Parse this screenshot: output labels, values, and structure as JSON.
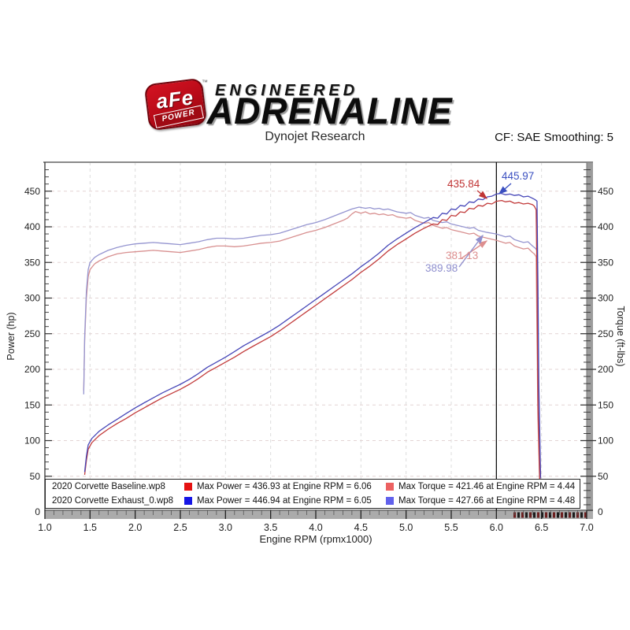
{
  "header": {
    "badge_main": "aFe",
    "badge_sub": "POWER",
    "badge_tm": "™",
    "brand_line1": "ENGINEERED",
    "brand_line2": "ADRENALINE",
    "subtitle": "Dynojet Research",
    "smoothing": "CF: SAE Smoothing: 5"
  },
  "legend": {
    "rows": [
      {
        "name": "2020 Corvette Baseline.wp8",
        "power_color": "#e51212",
        "power_text": "Max Power = 436.93 at Engine RPM = 6.06",
        "torque_color": "#ec6161",
        "torque_text": "Max Torque = 421.46 at Engine RPM = 4.44"
      },
      {
        "name": "2020 Corvette Exhaust_0.wp8",
        "power_color": "#1515e5",
        "power_text": "Max Power = 446.94 at Engine RPM = 6.05",
        "torque_color": "#6161ec",
        "torque_text": "Max Torque = 427.66 at Engine RPM = 4.48"
      }
    ]
  },
  "chart_data": {
    "type": "line",
    "xlabel": "Engine RPM (rpmx1000)",
    "ylabel_left": "Power (hp)",
    "ylabel_right": "Torque (ft-lbs)",
    "xlim": [
      1.0,
      7.0
    ],
    "ylim": [
      0,
      490
    ],
    "x_ticks": [
      "1.0",
      "1.5",
      "2.0",
      "2.5",
      "3.0",
      "3.5",
      "4.0",
      "4.5",
      "5.0",
      "5.5",
      "6.0",
      "6.5",
      "7.0"
    ],
    "y_ticks": [
      50,
      100,
      150,
      200,
      250,
      300,
      350,
      400,
      450
    ],
    "zero_label": "0",
    "x_minor_step": 0.1,
    "y_minor_step": 10,
    "grid": "dashed",
    "legend_position": "bottom",
    "cursor_rpm": 6.0,
    "annotations": [
      {
        "text": "435.84",
        "color": "#c03434",
        "meaning": "baseline power at cursor"
      },
      {
        "text": "445.97",
        "color": "#3a4fc0",
        "meaning": "exhaust power at cursor"
      },
      {
        "text": "381.13",
        "color": "#dd8f8f",
        "meaning": "baseline torque at cursor"
      },
      {
        "text": "389.98",
        "color": "#8f8fce",
        "meaning": "exhaust torque at cursor"
      }
    ],
    "series": [
      {
        "name": "2020 Corvette Baseline.wp8 - Torque (ft-lbs)",
        "color": "#d89090",
        "max": {
          "value": 421.46,
          "rpm": 4.44
        },
        "points": [
          [
            1.43,
            170
          ],
          [
            1.44,
            240
          ],
          [
            1.46,
            300
          ],
          [
            1.48,
            330
          ],
          [
            1.5,
            340
          ],
          [
            1.55,
            348
          ],
          [
            1.6,
            352
          ],
          [
            1.7,
            358
          ],
          [
            1.8,
            362
          ],
          [
            1.9,
            364
          ],
          [
            2.0,
            365
          ],
          [
            2.1,
            366
          ],
          [
            2.2,
            367
          ],
          [
            2.3,
            366
          ],
          [
            2.4,
            365
          ],
          [
            2.5,
            364
          ],
          [
            2.6,
            366
          ],
          [
            2.7,
            368
          ],
          [
            2.8,
            371
          ],
          [
            2.9,
            373
          ],
          [
            3.0,
            373
          ],
          [
            3.1,
            372
          ],
          [
            3.2,
            373
          ],
          [
            3.3,
            375
          ],
          [
            3.4,
            377
          ],
          [
            3.5,
            378
          ],
          [
            3.6,
            380
          ],
          [
            3.7,
            384
          ],
          [
            3.8,
            388
          ],
          [
            3.9,
            392
          ],
          [
            4.0,
            395
          ],
          [
            4.1,
            399
          ],
          [
            4.2,
            404
          ],
          [
            4.3,
            409
          ],
          [
            4.35,
            412
          ],
          [
            4.4,
            418
          ],
          [
            4.44,
            421.46
          ],
          [
            4.5,
            419
          ],
          [
            4.55,
            421
          ],
          [
            4.6,
            418
          ],
          [
            4.65,
            419
          ],
          [
            4.7,
            417
          ],
          [
            4.75,
            418
          ],
          [
            4.8,
            416
          ],
          [
            4.85,
            417
          ],
          [
            4.9,
            414
          ],
          [
            5.0,
            412
          ],
          [
            5.05,
            413
          ],
          [
            5.1,
            409
          ],
          [
            5.2,
            405
          ],
          [
            5.25,
            406
          ],
          [
            5.3,
            402
          ],
          [
            5.4,
            398
          ],
          [
            5.45,
            399
          ],
          [
            5.5,
            396
          ],
          [
            5.6,
            393
          ],
          [
            5.7,
            390
          ],
          [
            5.75,
            391
          ],
          [
            5.8,
            387
          ],
          [
            5.9,
            384
          ],
          [
            6.0,
            381.13
          ],
          [
            6.1,
            377
          ],
          [
            6.15,
            378
          ],
          [
            6.2,
            373
          ],
          [
            6.3,
            369
          ],
          [
            6.35,
            370
          ],
          [
            6.4,
            364
          ],
          [
            6.42,
            362
          ],
          [
            6.44,
            358
          ],
          [
            6.45,
            250
          ],
          [
            6.46,
            130
          ],
          [
            6.48,
            38
          ]
        ]
      },
      {
        "name": "2020 Corvette Exhaust_0.wp8 - Torque (ft-lbs)",
        "color": "#9595d0",
        "max": {
          "value": 427.66,
          "rpm": 4.48
        },
        "points": [
          [
            1.43,
            165
          ],
          [
            1.44,
            245
          ],
          [
            1.46,
            310
          ],
          [
            1.48,
            340
          ],
          [
            1.5,
            350
          ],
          [
            1.55,
            357
          ],
          [
            1.6,
            361
          ],
          [
            1.7,
            367
          ],
          [
            1.8,
            371
          ],
          [
            1.9,
            374
          ],
          [
            2.0,
            376
          ],
          [
            2.1,
            377
          ],
          [
            2.2,
            378
          ],
          [
            2.3,
            377
          ],
          [
            2.4,
            376
          ],
          [
            2.5,
            375
          ],
          [
            2.6,
            377
          ],
          [
            2.7,
            379
          ],
          [
            2.8,
            382
          ],
          [
            2.9,
            384
          ],
          [
            3.0,
            384
          ],
          [
            3.1,
            383
          ],
          [
            3.2,
            384
          ],
          [
            3.3,
            386
          ],
          [
            3.4,
            388
          ],
          [
            3.5,
            389
          ],
          [
            3.6,
            391
          ],
          [
            3.7,
            395
          ],
          [
            3.8,
            399
          ],
          [
            3.9,
            403
          ],
          [
            4.0,
            406
          ],
          [
            4.1,
            410
          ],
          [
            4.2,
            415
          ],
          [
            4.3,
            420
          ],
          [
            4.4,
            425
          ],
          [
            4.48,
            427.66
          ],
          [
            4.55,
            426
          ],
          [
            4.6,
            427
          ],
          [
            4.65,
            425
          ],
          [
            4.7,
            426
          ],
          [
            4.75,
            424
          ],
          [
            4.8,
            425
          ],
          [
            4.85,
            423
          ],
          [
            4.9,
            421
          ],
          [
            5.0,
            419
          ],
          [
            5.05,
            420
          ],
          [
            5.1,
            416
          ],
          [
            5.2,
            412
          ],
          [
            5.25,
            413
          ],
          [
            5.3,
            409
          ],
          [
            5.4,
            406
          ],
          [
            5.45,
            407
          ],
          [
            5.5,
            404
          ],
          [
            5.6,
            401
          ],
          [
            5.7,
            398
          ],
          [
            5.75,
            399
          ],
          [
            5.8,
            395
          ],
          [
            5.9,
            392
          ],
          [
            6.0,
            389.98
          ],
          [
            6.1,
            386
          ],
          [
            6.15,
            387
          ],
          [
            6.2,
            382
          ],
          [
            6.3,
            378
          ],
          [
            6.35,
            379
          ],
          [
            6.4,
            373
          ],
          [
            6.43,
            370
          ],
          [
            6.45,
            367
          ],
          [
            6.46,
            260
          ],
          [
            6.47,
            150
          ],
          [
            6.49,
            42
          ]
        ]
      },
      {
        "name": "2020 Corvette Baseline.wp8 - Power (hp)",
        "color": "#c23b3b",
        "max": {
          "value": 436.93,
          "rpm": 6.06
        },
        "points": [
          [
            1.44,
            52
          ],
          [
            1.46,
            72
          ],
          [
            1.48,
            88
          ],
          [
            1.52,
            97
          ],
          [
            1.6,
            107
          ],
          [
            1.7,
            116
          ],
          [
            1.8,
            124
          ],
          [
            1.9,
            131
          ],
          [
            2.0,
            139
          ],
          [
            2.1,
            146
          ],
          [
            2.2,
            153
          ],
          [
            2.3,
            160
          ],
          [
            2.4,
            166
          ],
          [
            2.5,
            172
          ],
          [
            2.6,
            179
          ],
          [
            2.7,
            187
          ],
          [
            2.8,
            196
          ],
          [
            2.9,
            203
          ],
          [
            3.0,
            210
          ],
          [
            3.1,
            217
          ],
          [
            3.2,
            225
          ],
          [
            3.3,
            232
          ],
          [
            3.4,
            239
          ],
          [
            3.5,
            246
          ],
          [
            3.6,
            254
          ],
          [
            3.7,
            263
          ],
          [
            3.8,
            272
          ],
          [
            3.9,
            281
          ],
          [
            4.0,
            290
          ],
          [
            4.1,
            299
          ],
          [
            4.2,
            308
          ],
          [
            4.3,
            317
          ],
          [
            4.4,
            326
          ],
          [
            4.5,
            336
          ],
          [
            4.6,
            345
          ],
          [
            4.7,
            355
          ],
          [
            4.8,
            366
          ],
          [
            4.9,
            375
          ],
          [
            5.0,
            383
          ],
          [
            5.1,
            391
          ],
          [
            5.2,
            398
          ],
          [
            5.3,
            404
          ],
          [
            5.35,
            403
          ],
          [
            5.4,
            410
          ],
          [
            5.45,
            409
          ],
          [
            5.5,
            416
          ],
          [
            5.55,
            415
          ],
          [
            5.6,
            421
          ],
          [
            5.65,
            420
          ],
          [
            5.7,
            426
          ],
          [
            5.75,
            425
          ],
          [
            5.8,
            430
          ],
          [
            5.85,
            429
          ],
          [
            5.9,
            433
          ],
          [
            5.95,
            432
          ],
          [
            6.0,
            435.84
          ],
          [
            6.06,
            436.93
          ],
          [
            6.1,
            435
          ],
          [
            6.15,
            436
          ],
          [
            6.2,
            433
          ],
          [
            6.25,
            434
          ],
          [
            6.3,
            432
          ],
          [
            6.35,
            433
          ],
          [
            6.4,
            431
          ],
          [
            6.42,
            429
          ],
          [
            6.44,
            424
          ],
          [
            6.45,
            330
          ],
          [
            6.46,
            150
          ],
          [
            6.48,
            42
          ]
        ]
      },
      {
        "name": "2020 Corvette Exhaust_0.wp8 - Power (hp)",
        "color": "#4747b8",
        "max": {
          "value": 446.94,
          "rpm": 6.05
        },
        "points": [
          [
            1.44,
            56
          ],
          [
            1.46,
            78
          ],
          [
            1.48,
            94
          ],
          [
            1.52,
            103
          ],
          [
            1.6,
            113
          ],
          [
            1.7,
            122
          ],
          [
            1.8,
            130
          ],
          [
            1.9,
            138
          ],
          [
            2.0,
            146
          ],
          [
            2.1,
            153
          ],
          [
            2.2,
            160
          ],
          [
            2.3,
            167
          ],
          [
            2.4,
            173
          ],
          [
            2.5,
            179
          ],
          [
            2.6,
            186
          ],
          [
            2.7,
            194
          ],
          [
            2.8,
            203
          ],
          [
            2.9,
            210
          ],
          [
            3.0,
            217
          ],
          [
            3.1,
            225
          ],
          [
            3.2,
            233
          ],
          [
            3.3,
            240
          ],
          [
            3.4,
            247
          ],
          [
            3.5,
            254
          ],
          [
            3.6,
            262
          ],
          [
            3.7,
            271
          ],
          [
            3.8,
            280
          ],
          [
            3.9,
            289
          ],
          [
            4.0,
            298
          ],
          [
            4.1,
            307
          ],
          [
            4.2,
            316
          ],
          [
            4.3,
            325
          ],
          [
            4.4,
            334
          ],
          [
            4.5,
            344
          ],
          [
            4.6,
            353
          ],
          [
            4.7,
            363
          ],
          [
            4.8,
            374
          ],
          [
            4.9,
            383
          ],
          [
            5.0,
            391
          ],
          [
            5.1,
            399
          ],
          [
            5.2,
            406
          ],
          [
            5.3,
            413
          ],
          [
            5.35,
            412
          ],
          [
            5.4,
            419
          ],
          [
            5.45,
            418
          ],
          [
            5.5,
            425
          ],
          [
            5.55,
            424
          ],
          [
            5.6,
            430
          ],
          [
            5.65,
            429
          ],
          [
            5.7,
            435
          ],
          [
            5.75,
            434
          ],
          [
            5.8,
            439
          ],
          [
            5.85,
            438
          ],
          [
            5.9,
            442
          ],
          [
            5.95,
            443
          ],
          [
            6.0,
            445.97
          ],
          [
            6.05,
            446.94
          ],
          [
            6.1,
            445
          ],
          [
            6.15,
            446
          ],
          [
            6.2,
            444
          ],
          [
            6.25,
            445
          ],
          [
            6.3,
            442
          ],
          [
            6.35,
            443
          ],
          [
            6.4,
            440
          ],
          [
            6.43,
            438
          ],
          [
            6.45,
            436
          ],
          [
            6.46,
            320
          ],
          [
            6.47,
            180
          ],
          [
            6.49,
            48
          ]
        ]
      }
    ]
  }
}
